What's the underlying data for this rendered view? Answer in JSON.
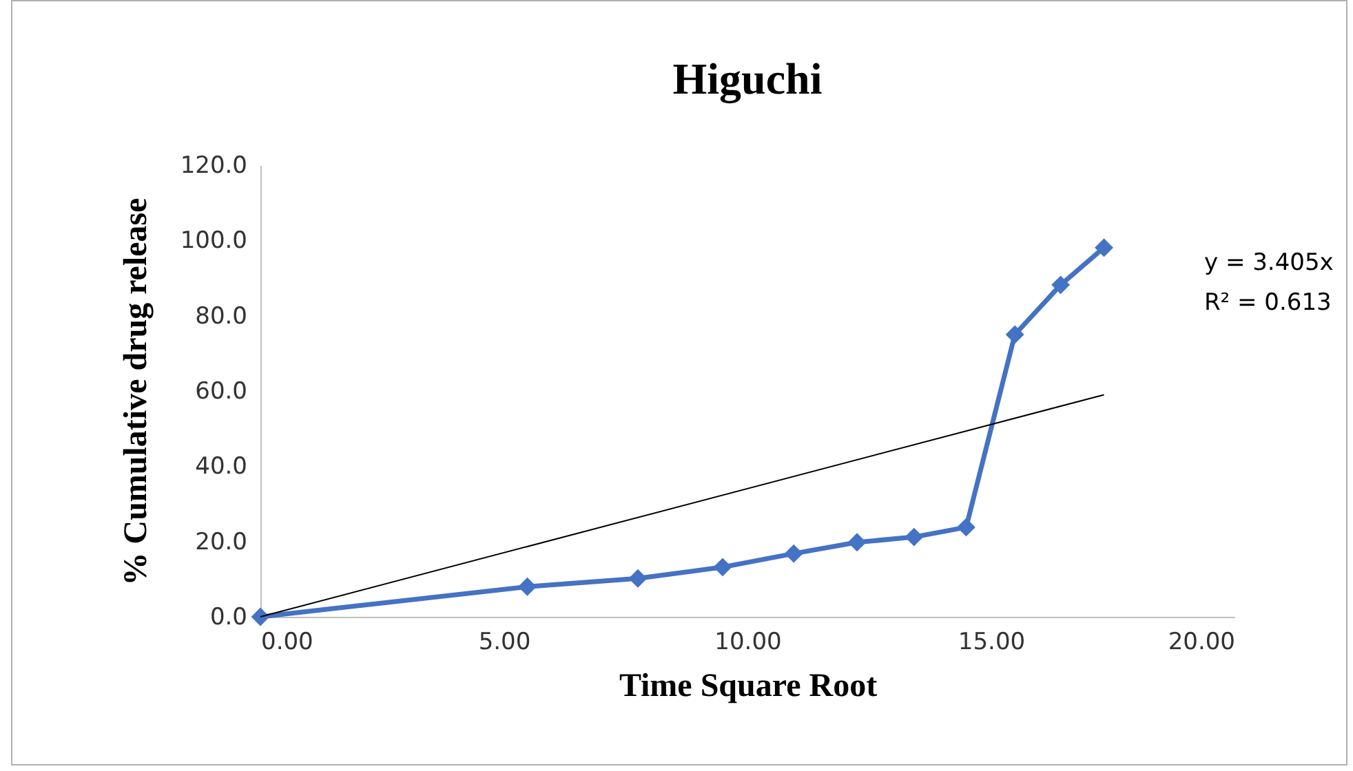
{
  "chart_data": {
    "type": "line",
    "title": "Higuchi",
    "xlabel": "Time Square Root",
    "ylabel": "% Cumulative drug release",
    "marker": "diamond",
    "line_style": "solid",
    "grid": false,
    "xlim": [
      0,
      20
    ],
    "xticks": [
      {
        "value": 0,
        "label": "0.00"
      },
      {
        "value": 5,
        "label": "5.00"
      },
      {
        "value": 10,
        "label": "10.00"
      },
      {
        "value": 15,
        "label": "15.00"
      },
      {
        "value": 20,
        "label": "20.00"
      }
    ],
    "ylim": [
      0,
      120
    ],
    "yticks": [
      {
        "value": 0,
        "label": "0.0"
      },
      {
        "value": 20,
        "label": "20.0"
      },
      {
        "value": 40,
        "label": "40.0"
      },
      {
        "value": 60,
        "label": "60.0"
      },
      {
        "value": 80,
        "label": "80.0"
      },
      {
        "value": 100,
        "label": "100.0"
      },
      {
        "value": 120,
        "label": "120.0"
      }
    ],
    "series": [
      {
        "color": "#4472c4",
        "x": [
          0,
          5.48,
          7.75,
          9.49,
          10.95,
          12.25,
          13.42,
          14.49,
          15.49,
          16.43,
          17.32
        ],
        "values": [
          0,
          8.0,
          10.2,
          13.2,
          16.8,
          19.8,
          21.2,
          23.8,
          75.0,
          88.2,
          98.1
        ]
      },
      {
        "type": "line",
        "color": "#000000",
        "marker": "none",
        "x": [
          0,
          17.32
        ],
        "values": [
          0,
          59
        ]
      }
    ],
    "annotations": [
      "y = 3.405x",
      "R² = 0.613"
    ]
  }
}
